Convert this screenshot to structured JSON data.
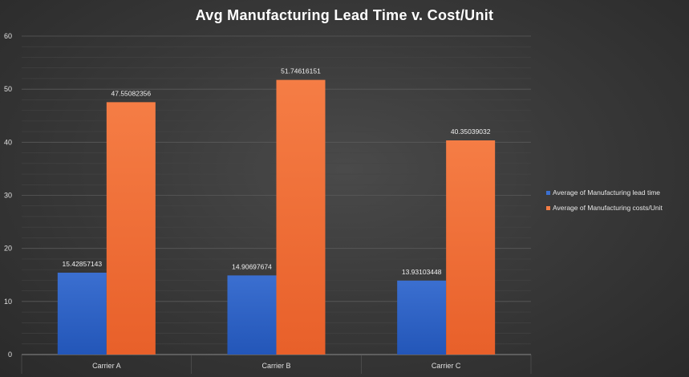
{
  "colors": {
    "series_1": "#3b6fd0",
    "series_1_dark": "#2356b8",
    "series_2": "#f57d45",
    "series_2_dark": "#e8602a",
    "axis_text": "#e0e0e0",
    "label_text": "#f0f0f0",
    "grid": "#5a5a5a"
  },
  "chart_data": {
    "type": "bar",
    "title": "Avg Manufacturing Lead Time v. Cost/Unit",
    "xlabel": "",
    "ylabel": "",
    "categories": [
      "Carrier A",
      "Carrier B",
      "Carrier C"
    ],
    "series": [
      {
        "name": "Average of Manufacturing lead time",
        "values": [
          15.42857143,
          14.90697674,
          13.93103448
        ],
        "labels": [
          "15.42857143",
          "14.90697674",
          "13.93103448"
        ]
      },
      {
        "name": "Average of Manufacturing costs/Unit",
        "values": [
          47.55082356,
          51.74616151,
          40.35039032
        ],
        "labels": [
          "47.55082356",
          "51.74616151",
          "40.35039032"
        ]
      }
    ],
    "ylim": [
      0,
      60
    ],
    "yticks": [
      0,
      10,
      20,
      30,
      40,
      50,
      60
    ],
    "grid": true,
    "legend_position": "right"
  }
}
